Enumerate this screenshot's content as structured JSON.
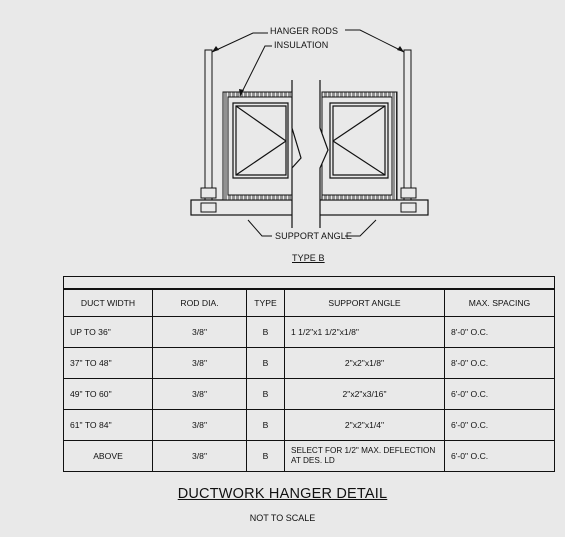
{
  "diagram": {
    "labels": {
      "hanger_rods": "HANGER RODS",
      "insulation": "INSULATION",
      "support_angle": "SUPPORT ANGLE",
      "type": "TYPE B"
    }
  },
  "table": {
    "headers": [
      "DUCT WIDTH",
      "ROD DIA.",
      "TYPE",
      "SUPPORT ANGLE",
      "MAX. SPACING"
    ],
    "rows": [
      {
        "duct_width": "UP TO 36\"",
        "rod_dia": "3/8\"",
        "type": "B",
        "support_angle": "1 1/2\"x1 1/2\"x1/8\"",
        "max_spacing": "8'-0\" O.C."
      },
      {
        "duct_width": "37\" TO 48\"",
        "rod_dia": "3/8\"",
        "type": "B",
        "support_angle": "2\"x2\"x1/8\"",
        "max_spacing": "8'-0\" O.C."
      },
      {
        "duct_width": "49\" TO 60\"",
        "rod_dia": "3/8\"",
        "type": "B",
        "support_angle": "2\"x2\"x3/16\"",
        "max_spacing": "6'-0\" O.C."
      },
      {
        "duct_width": "61\" TO 84\"",
        "rod_dia": "3/8\"",
        "type": "B",
        "support_angle": "2\"x2\"x1/4\"",
        "max_spacing": "6'-0\" O.C."
      },
      {
        "duct_width": "ABOVE",
        "rod_dia": "3/8\"",
        "type": "B",
        "support_angle": "SELECT FOR 1/2\" MAX. DEFLECTION AT DES. LD",
        "max_spacing": "6'-0\" O.C."
      }
    ]
  },
  "title": "DUCTWORK HANGER DETAIL",
  "subtitle": "NOT TO SCALE"
}
